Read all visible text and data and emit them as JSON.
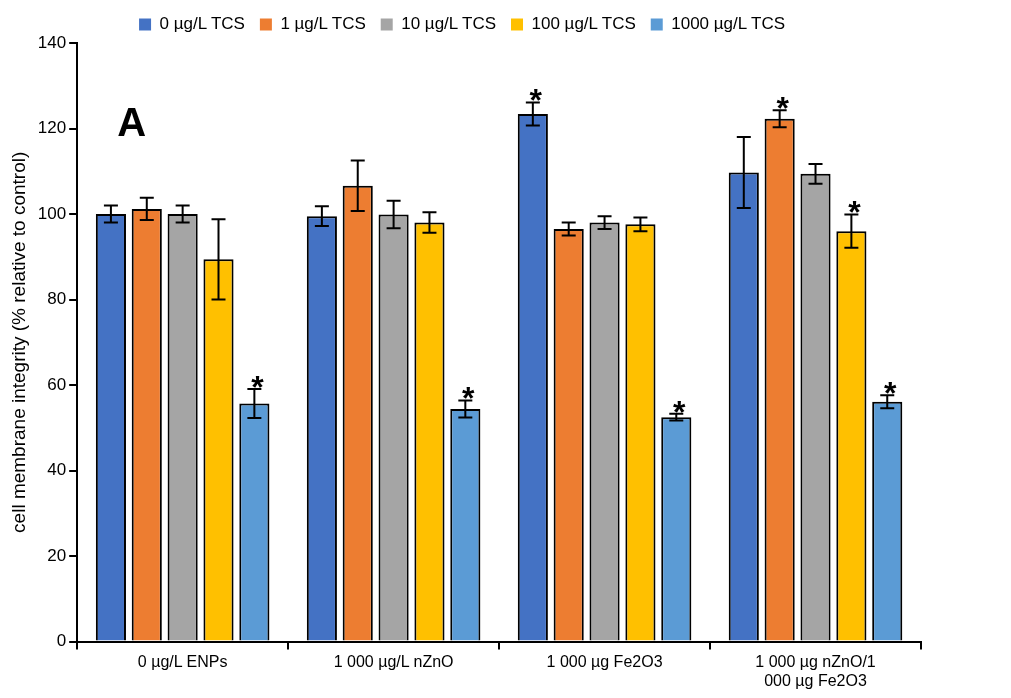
{
  "chart_data": {
    "type": "bar",
    "ylabel": "cell membrane integrity (% relative to control)",
    "annotations": [
      "A"
    ],
    "categories": [
      "0 µg/L ENPs",
      "1 000 µg/L nZnO",
      "1 000 µg Fe2O3",
      "1 000 µg nZnO/1 000 µg Fe2O3"
    ],
    "series": [
      {
        "name": "0 µg/L TCS",
        "color": "#4472c4",
        "values": [
          100,
          99.5,
          123.4,
          109.7
        ],
        "errors": [
          2,
          2.3,
          2.7,
          8.3
        ],
        "value_labels": [
          null,
          null,
          "*",
          null
        ]
      },
      {
        "name": "1 µg/L TCS",
        "color": "#ed7d31",
        "values": [
          101.2,
          106.6,
          96.5,
          122.3
        ],
        "errors": [
          2.6,
          5.9,
          1.5,
          2
        ],
        "value_labels": [
          null,
          null,
          null,
          "*"
        ]
      },
      {
        "name": "10 µg/L TCS",
        "color": "#a5a5a5",
        "values": [
          100,
          99.9,
          98,
          109.4
        ],
        "errors": [
          2,
          3.2,
          1.5,
          2.3
        ],
        "value_labels": [
          null,
          null,
          null,
          null
        ]
      },
      {
        "name": "100 µg/L TCS",
        "color": "#ffc000",
        "values": [
          89.4,
          98,
          97.6,
          96
        ],
        "errors": [
          9.4,
          2.4,
          1.6,
          3.9
        ],
        "value_labels": [
          null,
          null,
          null,
          "*"
        ]
      },
      {
        "name": "1000 µg/L TCS",
        "color": "#5b9bd5",
        "values": [
          55.7,
          54.4,
          52.5,
          56.1
        ],
        "errors": [
          3.4,
          2,
          0.8,
          1.5
        ],
        "value_labels": [
          "*",
          "*",
          "*",
          "*"
        ]
      }
    ],
    "ylim": [
      0,
      140
    ],
    "yticks": [
      0,
      20,
      40,
      60,
      80,
      100,
      120,
      140
    ],
    "grid": false,
    "legend": "top"
  }
}
